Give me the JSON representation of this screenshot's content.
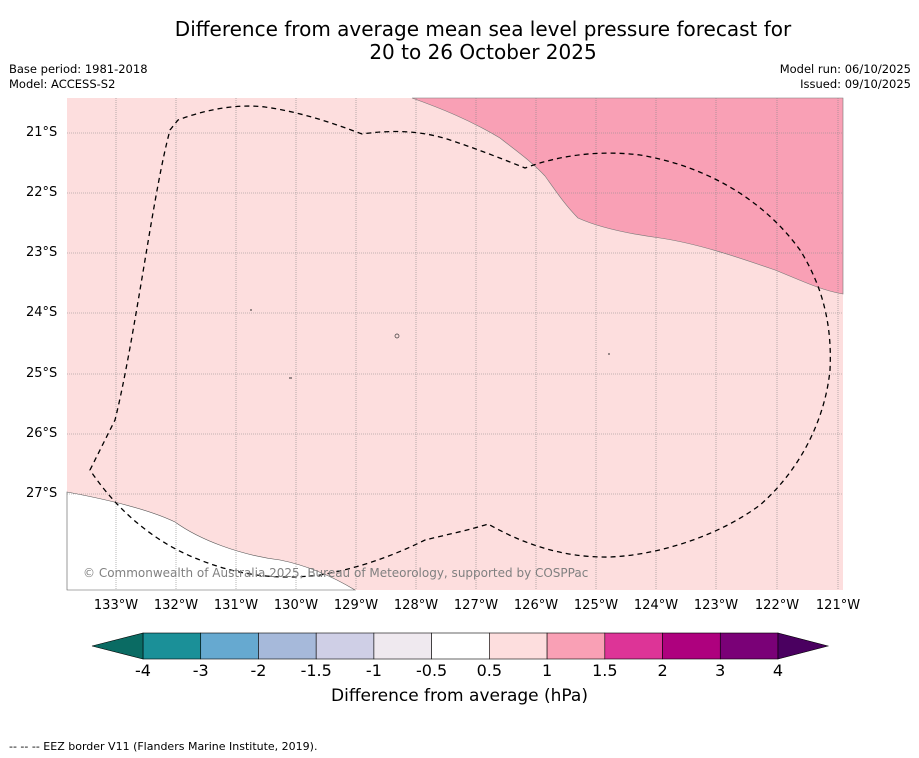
{
  "title_line1": "Difference from average mean sea level pressure forecast for",
  "title_line2": "20 to 26 October 2025",
  "base_period": "Base period: 1981-2018",
  "model": "Model: ACCESS-S2",
  "model_run": "Model run: 06/10/2025",
  "issued": "Issued: 09/10/2025",
  "latitude_labels": [
    "21°S",
    "22°S",
    "23°S",
    "24°S",
    "25°S",
    "26°S",
    "27°S"
  ],
  "longitude_labels": [
    "133°W",
    "132°W",
    "131°W",
    "130°W",
    "129°W",
    "128°W",
    "127°W",
    "126°W",
    "125°W",
    "124°W",
    "123°W",
    "122°W",
    "121°W"
  ],
  "watermark": "© Commonwealth of Australia 2025, Bureau of Meteorology, supported by COSPPac",
  "colorbar": {
    "ticks": [
      "-4",
      "-3",
      "-2",
      "-1.5",
      "-1",
      "-0.5",
      "0.5",
      "1",
      "1.5",
      "2",
      "3",
      "4"
    ],
    "colors": [
      "#1b9098",
      "#66a9d0",
      "#a6b9da",
      "#cfcfe6",
      "#efe9ef",
      "#ffffff",
      "#fddede",
      "#f9a0b5",
      "#dd3497",
      "#ae017e",
      "#7a0177"
    ],
    "under_color": "#0a6b63",
    "over_color": "#4a0060",
    "label": "Difference from average (hPa)"
  },
  "map_colors": {
    "light_pink": "#fddede",
    "pink": "#f9a0b5"
  },
  "footer": "--  --  -- EEZ border V11 (Flanders Marine Institute, 2019)."
}
